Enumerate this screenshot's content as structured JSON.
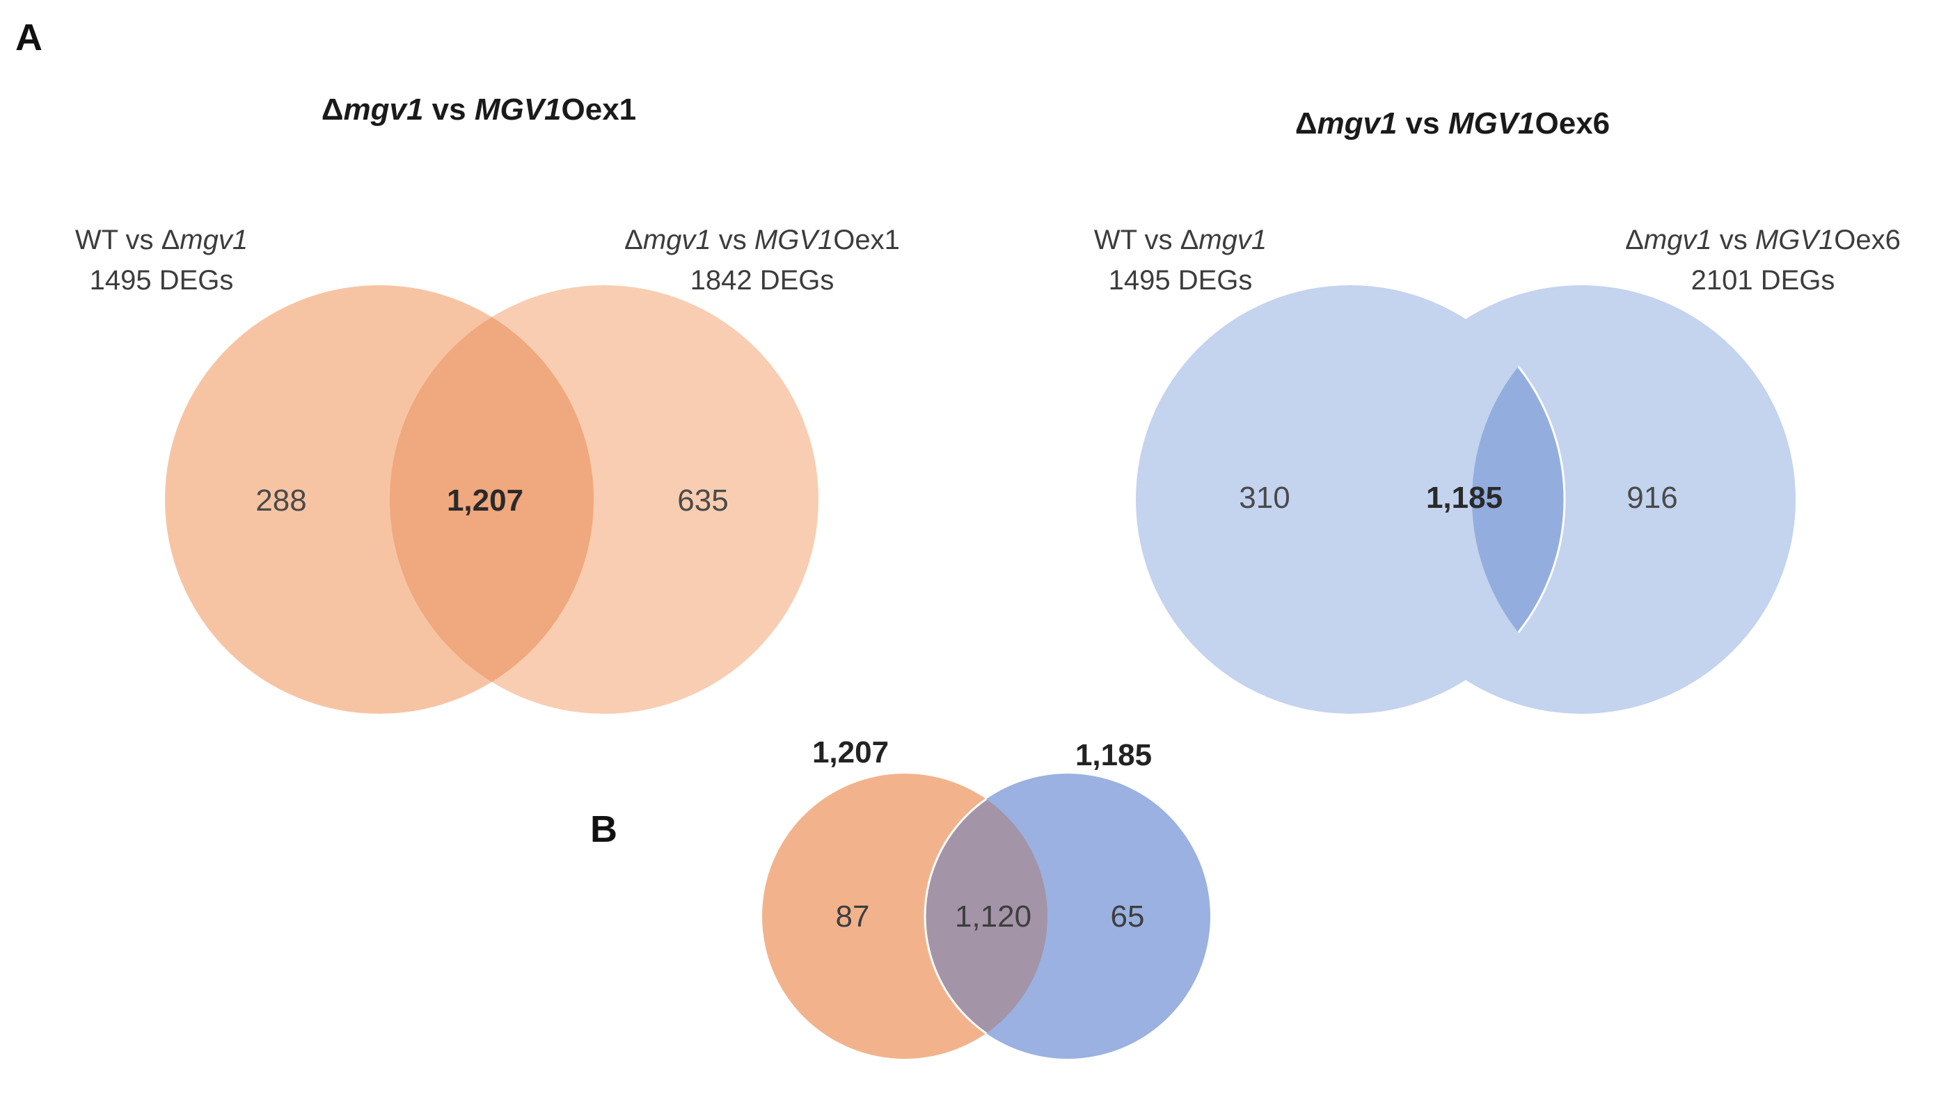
{
  "panels": {
    "a": {
      "letter": "A",
      "left": {
        "title": {
          "delta": "Δ",
          "gene_it": "mgv1",
          "vs": " vs ",
          "gene2_it": "MGV1",
          "suffix": "Oex1"
        },
        "set1": {
          "line1_prefix": "WT vs ",
          "line1_delta": "Δ",
          "line1_it": "mgv1",
          "line2": "1495 DEGs"
        },
        "set2": {
          "line1_delta": "Δ",
          "line1_it": "mgv1",
          "line1_mid": " vs ",
          "line1_it2": "MGV1",
          "line1_suffix": "Oex1",
          "line2": "1842 DEGs"
        },
        "only1": "288",
        "both": "1,207",
        "only2": "635",
        "colors": {
          "circle": "#f7c4a3",
          "overlap": "#f0a87e"
        }
      },
      "right": {
        "title": {
          "delta": "Δ",
          "gene_it": "mgv1",
          "vs": " vs ",
          "gene2_it": "MGV1",
          "suffix": "Oex6"
        },
        "set1": {
          "line1_prefix": "WT vs ",
          "line1_delta": "Δ",
          "line1_it": "mgv1",
          "line2": "1495 DEGs"
        },
        "set2": {
          "line1_delta": "Δ",
          "line1_it": "mgv1",
          "line1_mid": " vs ",
          "line1_it2": "MGV1",
          "line1_suffix": "Oex6",
          "line2": "2101 DEGs"
        },
        "only1": "310",
        "both": "1,185",
        "only2": "916",
        "colors": {
          "circle": "#c4d3ee",
          "overlap": "#93aede"
        }
      }
    },
    "b": {
      "letter": "B",
      "set1_total": "1,207",
      "set2_total": "1,185",
      "only1": "87",
      "both": "1,120",
      "only2": "65",
      "colors": {
        "left": "#f2b38c",
        "right": "#9ab1e1",
        "overlap": "#a394a8"
      }
    }
  }
}
